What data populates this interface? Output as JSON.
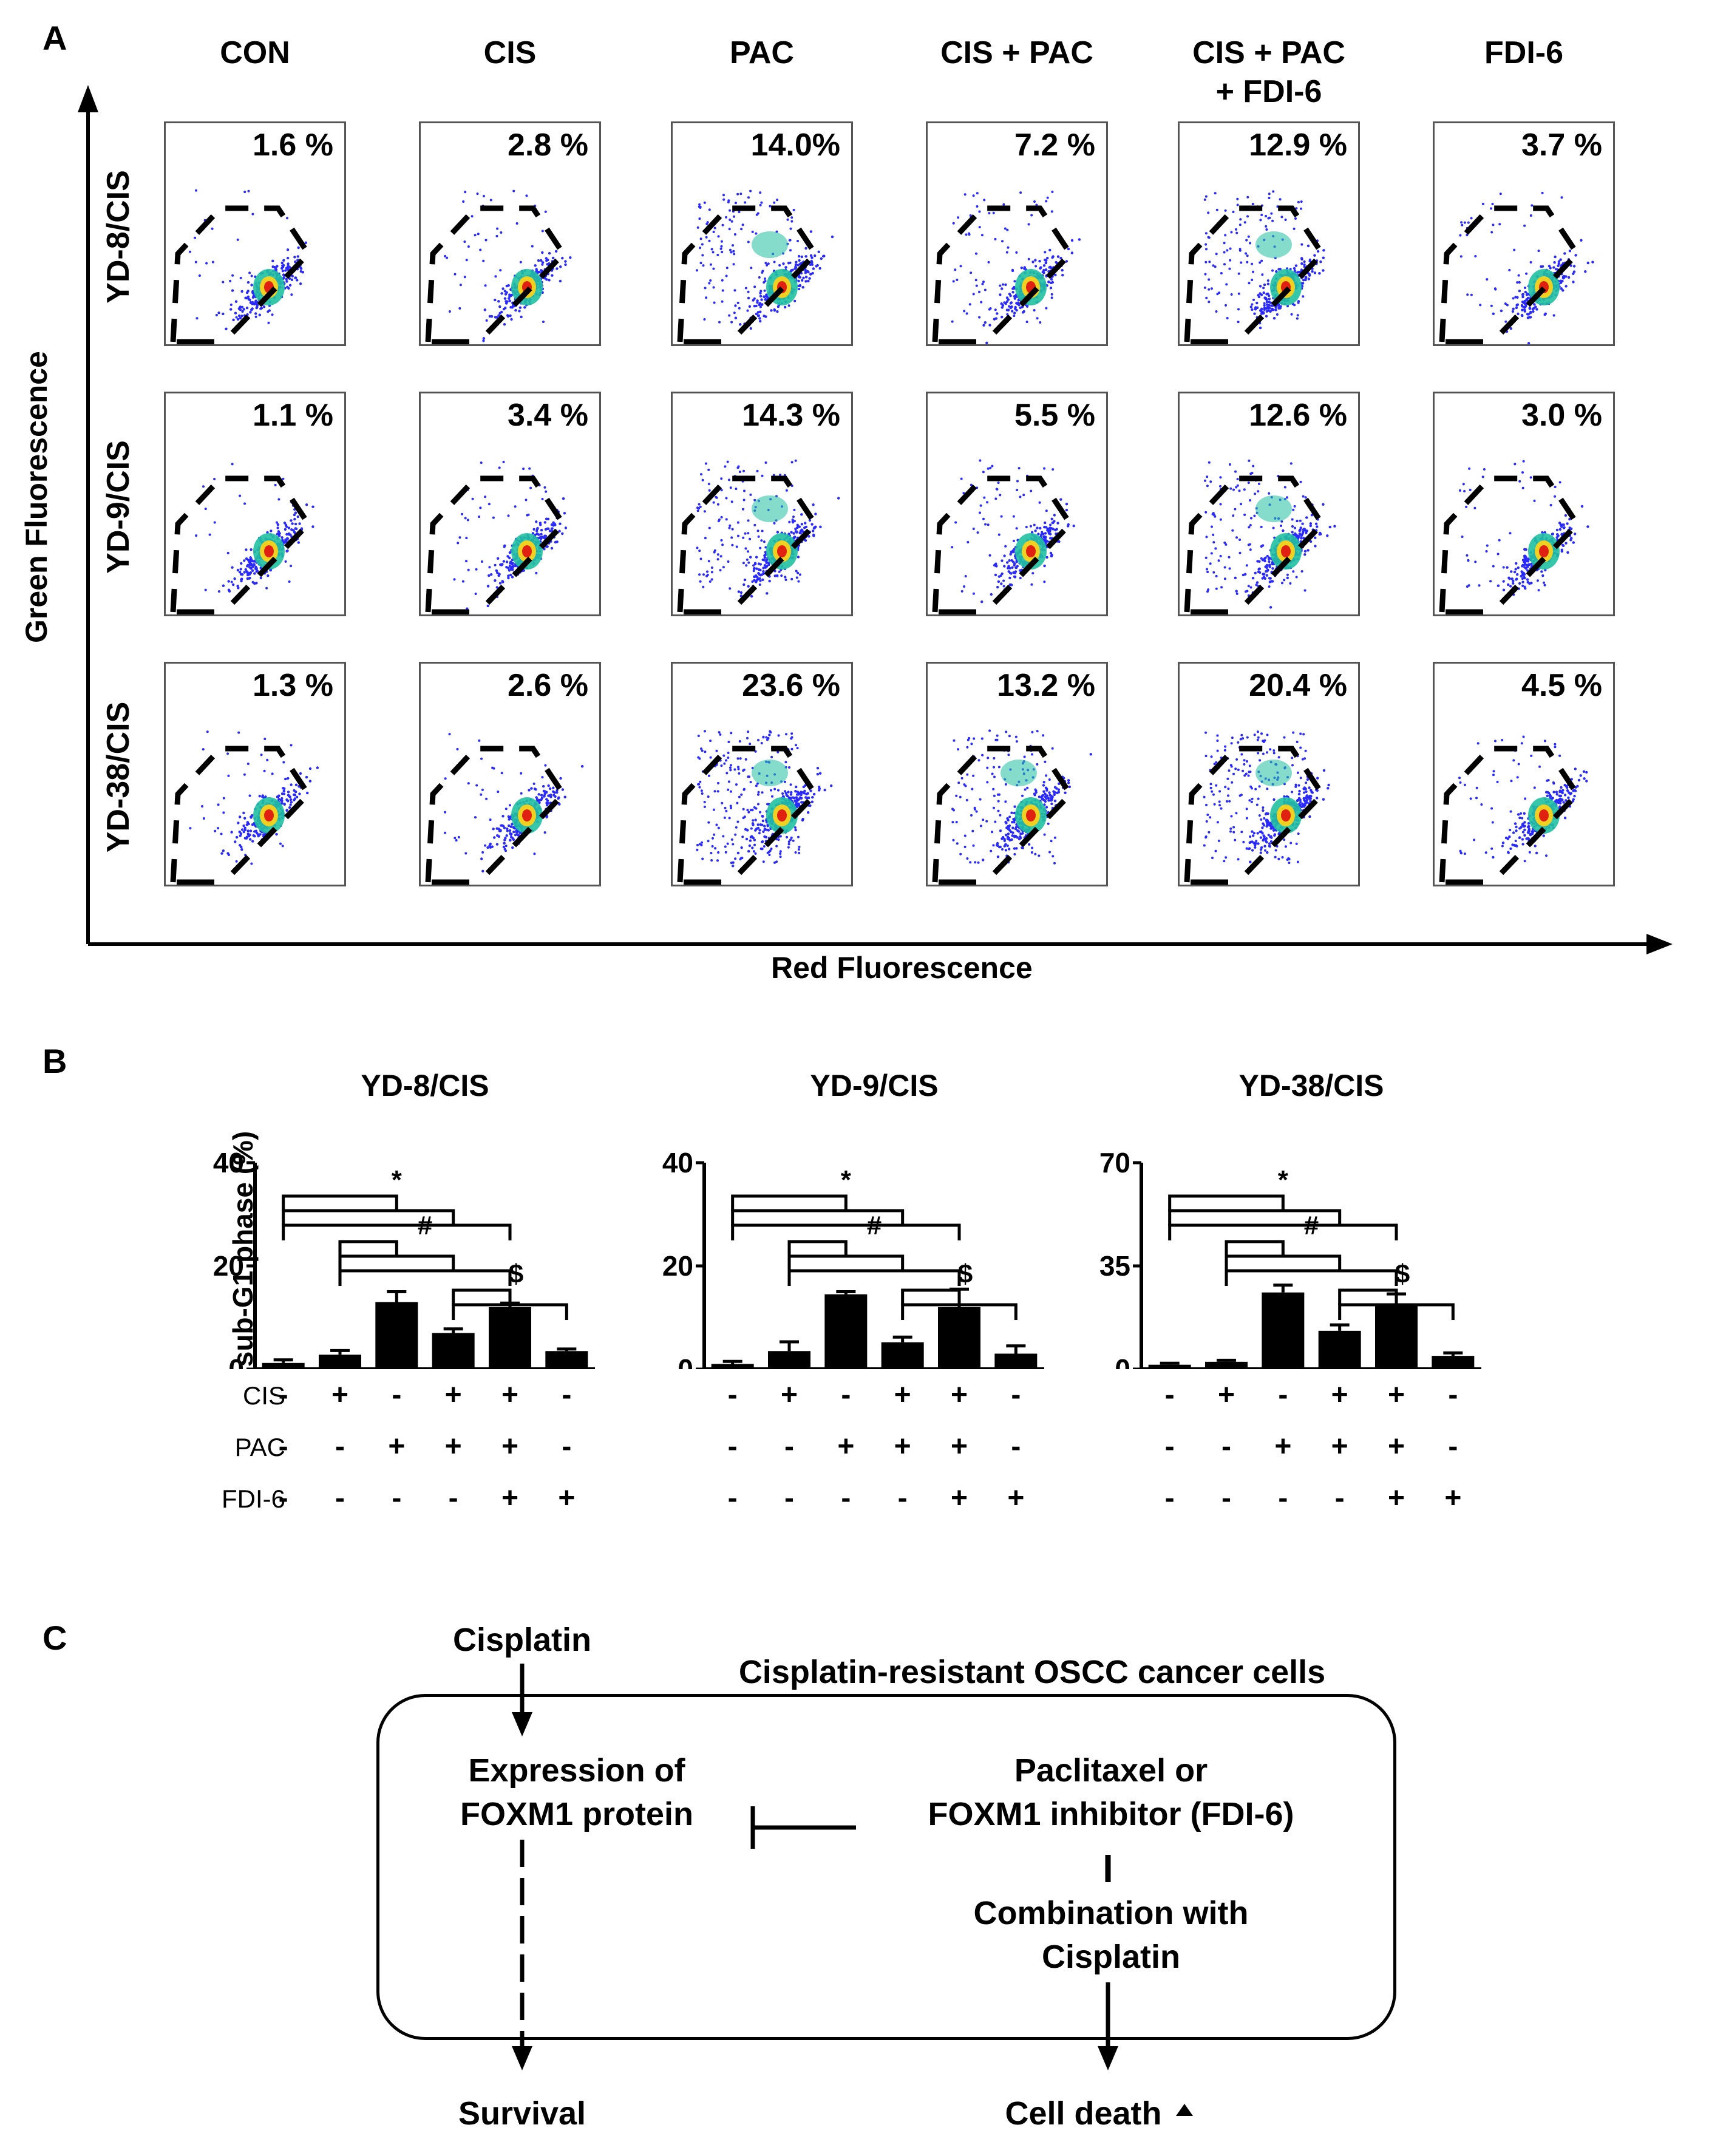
{
  "panel_a": {
    "label": "A",
    "columns": [
      "CON",
      "CIS",
      "PAC",
      "CIS + PAC",
      "CIS + PAC\n+ FDI-6",
      "FDI-6"
    ],
    "rows": [
      {
        "name": "YD-8/CIS",
        "percents": [
          "1.6 %",
          "2.8 %",
          "14.0%",
          "7.2 %",
          "12.9 %",
          "3.7 %"
        ]
      },
      {
        "name": "YD-9/CIS",
        "percents": [
          "1.1 %",
          "3.4 %",
          "14.3 %",
          "5.5 %",
          "12.6 %",
          "3.0 %"
        ]
      },
      {
        "name": "YD-38/CIS",
        "percents": [
          "1.3 %",
          "2.6 %",
          "23.6 %",
          "13.2 %",
          "20.4 %",
          "4.5 %"
        ]
      }
    ],
    "y_axis_label": "Green Fluorescence",
    "x_axis_label": "Red Fluorescence",
    "plot_colors": {
      "low": "#2a2aff",
      "mid": "#20c0a0",
      "high": "#e02010",
      "gate": "#000000"
    }
  },
  "panel_b": {
    "label": "B",
    "y_axis_label": "sub-G1 phase (%)",
    "row_labels": [
      "CIS",
      "PAC",
      "FDI-6"
    ],
    "treatments": {
      "CIS": [
        "-",
        "+",
        "-",
        "+",
        "+",
        "-"
      ],
      "PAC": [
        "-",
        "-",
        "+",
        "+",
        "+",
        "-"
      ],
      "FDI-6": [
        "-",
        "-",
        "-",
        "-",
        "+",
        "+"
      ]
    },
    "significance_markers": [
      "*",
      "#",
      "$"
    ]
  },
  "chart_data": [
    {
      "type": "bar",
      "title": "YD-8/CIS",
      "ylabel": "sub-G1 phase (%)",
      "ylim": [
        0,
        40
      ],
      "yticks": [
        0,
        20,
        40
      ],
      "categories": [
        "CON",
        "CIS",
        "PAC",
        "CIS + PAC",
        "CIS + PAC + FDI-6",
        "FDI-6"
      ],
      "values": [
        1.2,
        2.8,
        13.0,
        7.0,
        12.0,
        3.5
      ],
      "errors": [
        0.6,
        0.8,
        2.0,
        0.8,
        0.8,
        0.4
      ]
    },
    {
      "type": "bar",
      "title": "YD-9/CIS",
      "ylabel": "sub-G1 phase (%)",
      "ylim": [
        0,
        40
      ],
      "yticks": [
        0,
        20,
        40
      ],
      "categories": [
        "CON",
        "CIS",
        "PAC",
        "CIS + PAC",
        "CIS + PAC + FDI-6",
        "FDI-6"
      ],
      "values": [
        1.0,
        3.5,
        14.5,
        5.2,
        12.0,
        3.0
      ],
      "errors": [
        0.5,
        1.8,
        0.5,
        1.0,
        3.5,
        1.5
      ]
    },
    {
      "type": "bar",
      "title": "YD-38/CIS",
      "ylabel": "sub-G1 phase (%)",
      "ylim": [
        0,
        70
      ],
      "yticks": [
        0,
        35,
        70
      ],
      "categories": [
        "CON",
        "CIS",
        "PAC",
        "CIS + PAC",
        "CIS + PAC + FDI-6",
        "FDI-6"
      ],
      "values": [
        1.5,
        2.5,
        26.0,
        13.0,
        22.0,
        4.5
      ],
      "errors": [
        0.5,
        0.5,
        2.5,
        2.0,
        3.5,
        1.0
      ]
    }
  ],
  "panel_c": {
    "label": "C",
    "cisplatin": "Cisplatin",
    "box_title": "Cisplatin-resistant OSCC cancer cells",
    "expression": "Expression of\nFOXM1 protein",
    "inhibitor": "Paclitaxel or\nFOXM1 inhibitor (FDI-6)",
    "combination": "Combination with\nCisplatin",
    "survival": "Survival",
    "cell_death": "Cell death"
  }
}
